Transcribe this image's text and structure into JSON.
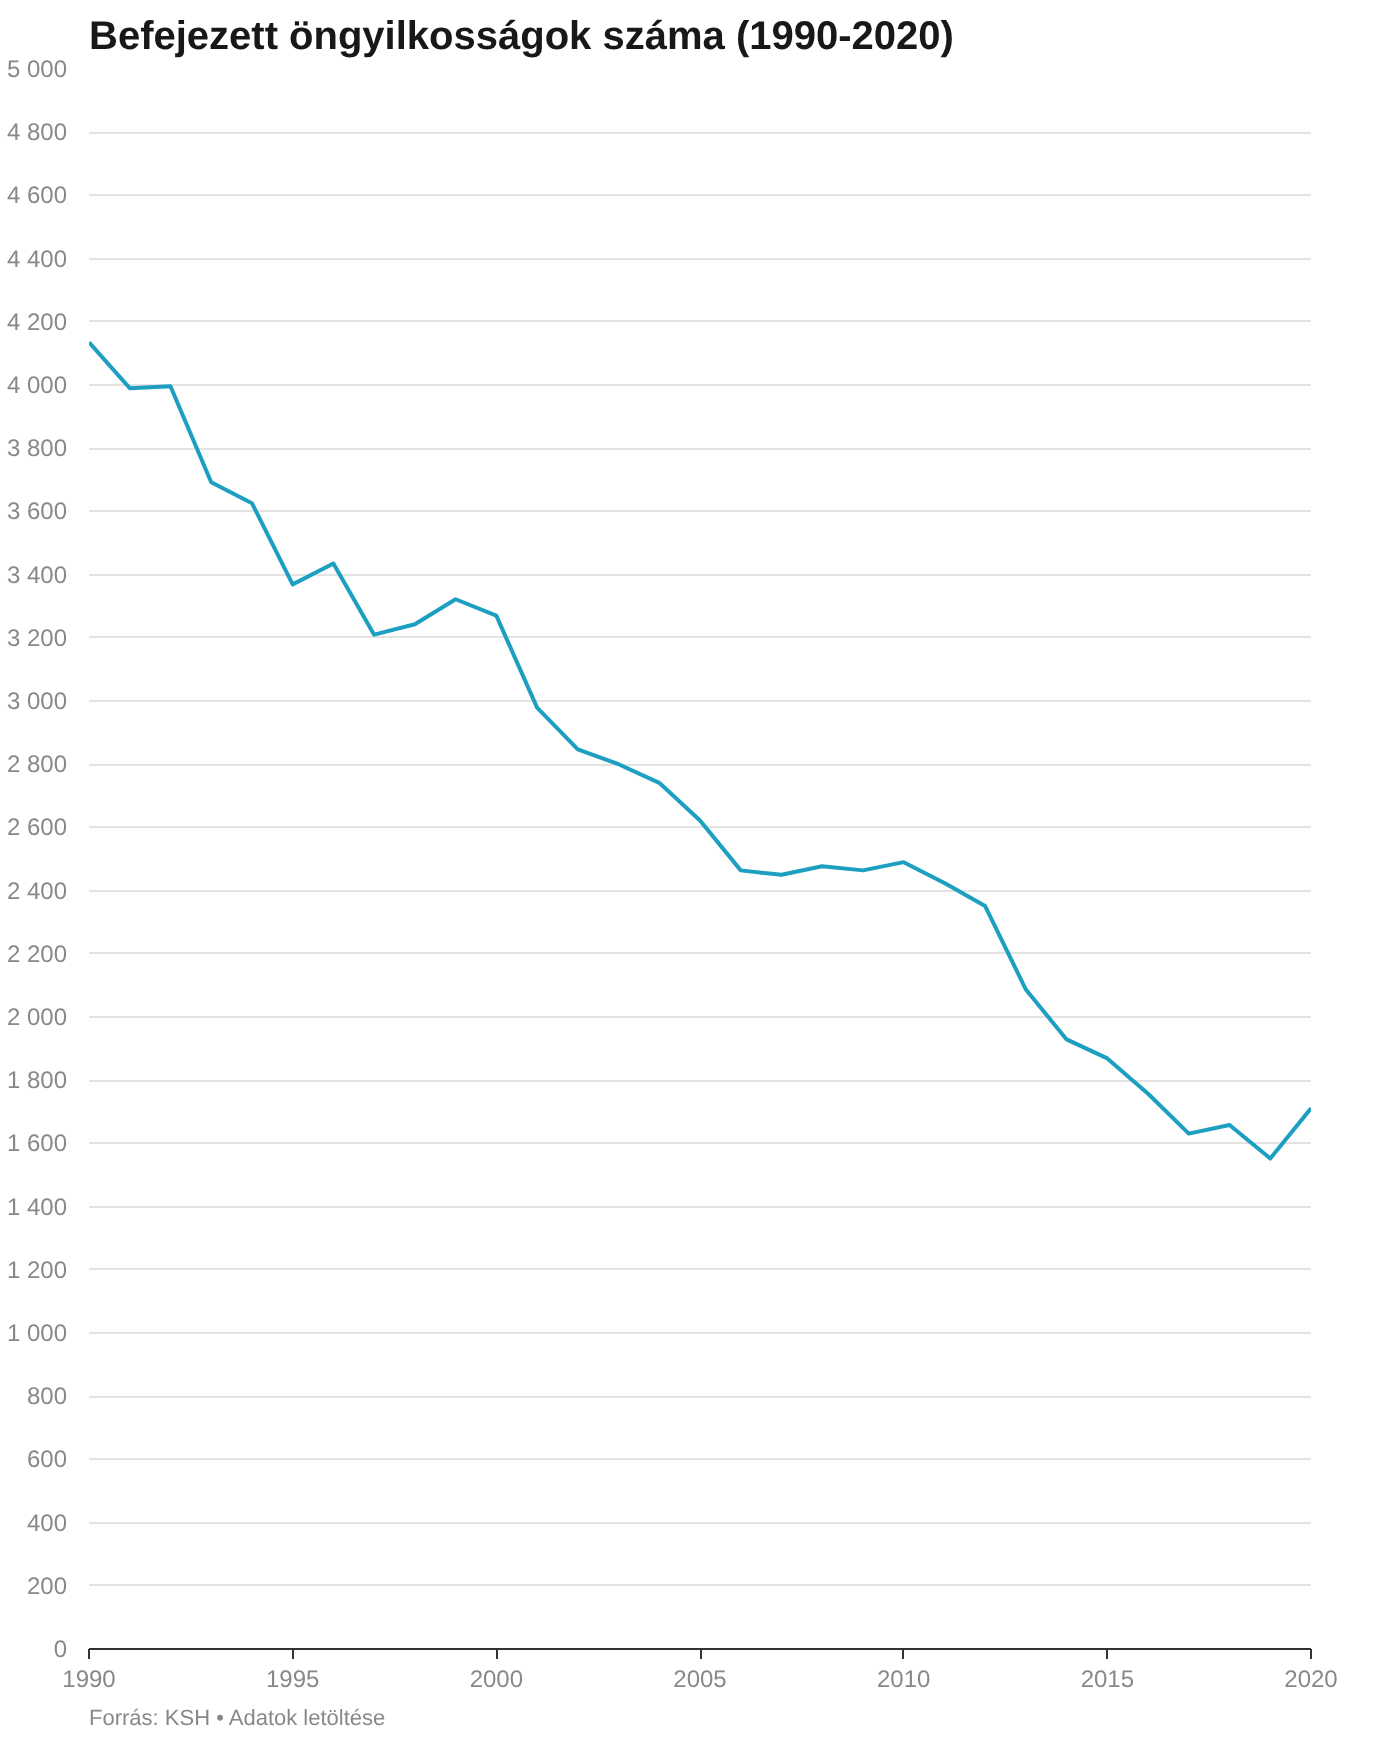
{
  "chart_data": {
    "type": "line",
    "title": "Befejezett öngyilkosságok száma (1990-2020)",
    "x": [
      1990,
      1991,
      1992,
      1993,
      1994,
      1995,
      1996,
      1997,
      1998,
      1999,
      2000,
      2001,
      2002,
      2003,
      2004,
      2005,
      2006,
      2007,
      2008,
      2009,
      2010,
      2011,
      2012,
      2013,
      2014,
      2015,
      2016,
      2017,
      2018,
      2019,
      2020
    ],
    "series": [
      {
        "color": "#1d9fc2",
        "values": [
          4135,
          3990,
          3996,
          3692,
          3626,
          3369,
          3435,
          3210,
          3243,
          3322,
          3270,
          2979,
          2847,
          2800,
          2741,
          2622,
          2464,
          2450,
          2477,
          2464,
          2490,
          2424,
          2351,
          2087,
          1929,
          1869,
          1757,
          1631,
          1658,
          1552,
          1711
        ]
      }
    ],
    "xlim": [
      1990,
      2020
    ],
    "xticks": [
      1990,
      1995,
      2000,
      2005,
      2010,
      2015,
      2020
    ],
    "ylim": [
      0,
      5000
    ],
    "yticks": [
      0,
      200,
      400,
      600,
      800,
      {
        "value": 1000,
        "label": "1 000"
      },
      {
        "value": 1200,
        "label": "1 200"
      },
      {
        "value": 1400,
        "label": "1 400"
      },
      {
        "value": 1600,
        "label": "1 600"
      },
      {
        "value": 1800,
        "label": "1 800"
      },
      {
        "value": 2000,
        "label": "2 000"
      },
      {
        "value": 2200,
        "label": "2 200"
      },
      {
        "value": 2400,
        "label": "2 400"
      },
      {
        "value": 2600,
        "label": "2 600"
      },
      {
        "value": 2800,
        "label": "2 800"
      },
      {
        "value": 3000,
        "label": "3 000"
      },
      {
        "value": 3200,
        "label": "3 200"
      },
      {
        "value": 3400,
        "label": "3 400"
      },
      {
        "value": 3600,
        "label": "3 600"
      },
      {
        "value": 3800,
        "label": "3 800"
      },
      {
        "value": 4000,
        "label": "4 000"
      },
      {
        "value": 4200,
        "label": "4 200"
      },
      {
        "value": 4400,
        "label": "4 400"
      },
      {
        "value": 4600,
        "label": "4 600"
      },
      {
        "value": 4800,
        "label": "4 800"
      },
      {
        "value": 5000,
        "label": "5 000"
      }
    ],
    "grid": "y",
    "marker": "none",
    "line_style": "solid",
    "annotations": [
      "Forrás: KSH • Adatok letöltése"
    ]
  }
}
